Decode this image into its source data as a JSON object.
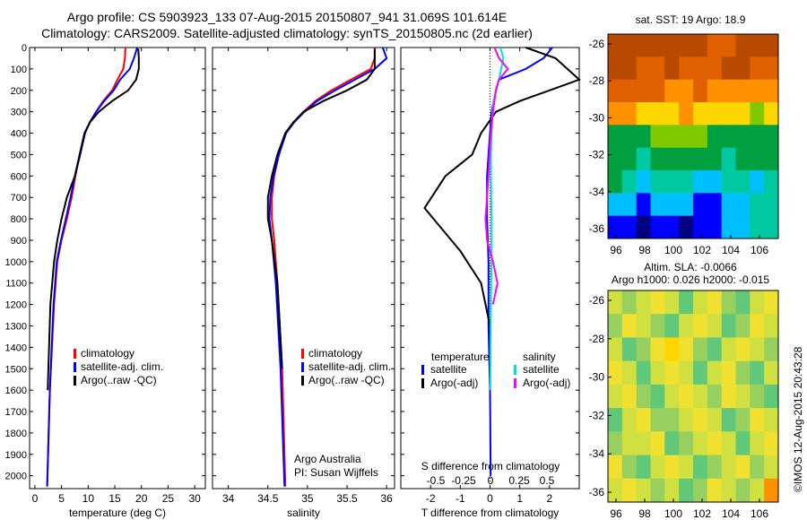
{
  "titles": {
    "line1": "Argo profile: CS 5903923_133 07-Aug-2015 20150807_941 31.069S 101.614E",
    "line2": "Climatology: CARS2009. Satellite-adjusted climatology: synTS_20150805.nc (2d earlier)"
  },
  "depth_axis": {
    "ticks": [
      0,
      100,
      200,
      300,
      400,
      500,
      600,
      700,
      800,
      900,
      1000,
      1100,
      1200,
      1300,
      1400,
      1500,
      1600,
      1700,
      1800,
      1900,
      2000
    ],
    "range": [
      0,
      2060
    ]
  },
  "chart_data": [
    {
      "type": "line",
      "panel": "temperature",
      "xlabel": "temperature (deg C)",
      "xlim": [
        -1,
        32
      ],
      "xticks": [
        0,
        5,
        10,
        15,
        20,
        25,
        30
      ],
      "legend": [
        "climatology",
        "satellite-adj. clim.",
        "Argo(..raw -QC)"
      ],
      "series": [
        {
          "name": "climatology",
          "color": "#ff0000",
          "x": [
            17.0,
            16.9,
            16.6,
            15.5,
            14.5,
            12.8,
            11.5,
            10.3,
            9.3,
            8.4,
            7.6,
            6.9,
            6.0,
            5.0,
            4.2,
            3.6,
            2.8,
            2.3
          ],
          "y": [
            0,
            50,
            100,
            150,
            200,
            250,
            300,
            350,
            400,
            500,
            600,
            700,
            800,
            900,
            1000,
            1200,
            1600,
            2050
          ]
        },
        {
          "name": "satellite-adj. clim.",
          "color": "#0000ff",
          "x": [
            19.2,
            18.6,
            17.8,
            16.0,
            14.8,
            13.0,
            11.5,
            10.3,
            9.3,
            8.4,
            7.5,
            6.7,
            5.8,
            4.9,
            4.1,
            3.5,
            2.8,
            2.3
          ],
          "y": [
            0,
            50,
            100,
            150,
            200,
            250,
            300,
            350,
            400,
            500,
            600,
            700,
            800,
            900,
            1000,
            1200,
            1600,
            2050
          ]
        },
        {
          "name": "Argo(..raw -QC)",
          "color": "#000000",
          "x": [
            19.4,
            19.5,
            19.5,
            19.0,
            17.5,
            14.5,
            12.0,
            10.3,
            9.4,
            8.5,
            7.5,
            6.0,
            5.0,
            4.2,
            3.6,
            2.9,
            2.4
          ],
          "y": [
            5,
            50,
            100,
            150,
            200,
            250,
            300,
            350,
            400,
            500,
            600,
            700,
            800,
            900,
            1000,
            1200,
            1600
          ]
        }
      ]
    },
    {
      "type": "line",
      "panel": "salinity",
      "xlabel": "salinity",
      "xlim": [
        33.8,
        36.1
      ],
      "xticks": [
        34,
        34.5,
        35,
        35.5,
        36
      ],
      "legend": [
        "climatology",
        "satellite-adj. clim.",
        "Argo(..raw -QC)"
      ],
      "annotations": [
        "Argo Australia",
        "PI: Susan Wijffels"
      ],
      "series": [
        {
          "name": "climatology",
          "color": "#ff0000",
          "x": [
            35.85,
            35.85,
            35.8,
            35.55,
            35.3,
            35.1,
            34.95,
            34.82,
            34.72,
            34.64,
            34.58,
            34.55,
            34.55,
            34.58,
            34.62,
            34.68,
            34.72
          ],
          "y": [
            0,
            50,
            100,
            150,
            200,
            250,
            300,
            350,
            400,
            500,
            600,
            700,
            800,
            900,
            1100,
            1500,
            2050
          ]
        },
        {
          "name": "satellite-adj. clim.",
          "color": "#0000ff",
          "x": [
            35.95,
            36.0,
            35.85,
            35.6,
            35.35,
            35.12,
            34.96,
            34.83,
            34.73,
            34.64,
            34.57,
            34.53,
            34.52,
            34.55,
            34.6,
            34.66,
            34.71
          ],
          "y": [
            0,
            50,
            100,
            150,
            200,
            250,
            300,
            350,
            400,
            500,
            600,
            700,
            800,
            900,
            1100,
            1500,
            2050
          ]
        },
        {
          "name": "Argo(..raw -QC)",
          "color": "#000000",
          "x": [
            35.85,
            35.85,
            35.85,
            35.75,
            35.5,
            35.2,
            34.95,
            34.82,
            34.72,
            34.62,
            34.55,
            34.5,
            34.5,
            34.55,
            34.62,
            34.68
          ],
          "y": [
            5,
            50,
            100,
            150,
            200,
            250,
            300,
            350,
            400,
            500,
            600,
            700,
            800,
            900,
            1100,
            1500
          ]
        }
      ]
    },
    {
      "type": "line",
      "panel": "difference",
      "xlabel": "T difference from climatology",
      "xlim": [
        -3.0,
        3.0
      ],
      "xticks": [
        -2,
        -1,
        0,
        1,
        2
      ],
      "secondary_xlabel": "S difference from climatology",
      "secondary_xticks": [
        "-0.5",
        "-0.25",
        "0",
        "0.25",
        "0.5"
      ],
      "legend_titles": [
        "temperature",
        "salinity"
      ],
      "legend": [
        "satellite",
        "Argo(-adj)",
        "satellite",
        "Argo(-adj)"
      ],
      "series": [
        {
          "name": "T satellite",
          "color": "#0000ff",
          "x": [
            2.1,
            1.8,
            1.2,
            0.3,
            0.2,
            0.05,
            0.0,
            -0.05,
            -0.1,
            -0.1,
            -0.05,
            -0.05,
            0.0,
            0.02
          ],
          "y": [
            0,
            50,
            100,
            150,
            200,
            300,
            400,
            500,
            600,
            800,
            1000,
            1300,
            1600,
            2000
          ]
        },
        {
          "name": "T Argo(-adj)",
          "color": "#000000",
          "x": [
            1.2,
            2.2,
            3.0,
            2.0,
            1.0,
            0.2,
            -0.3,
            -0.6,
            -1.5,
            -2.2,
            -1.0,
            -0.3,
            0.0,
            0.0
          ],
          "y": [
            0,
            50,
            150,
            200,
            250,
            300,
            400,
            500,
            600,
            750,
            950,
            1100,
            1300,
            1500
          ]
        },
        {
          "name": "S satellite",
          "color": "#00e0e0",
          "x": [
            0.35,
            0.45,
            0.3,
            0.12,
            0.08,
            0.05,
            0.03,
            0.03,
            0.05,
            0.05,
            0.04,
            0.02,
            0.01
          ],
          "y": [
            0,
            50,
            150,
            250,
            300,
            400,
            500,
            600,
            800,
            1000,
            1100,
            1300,
            1600
          ]
        },
        {
          "name": "S Argo(-adj)",
          "color": "#ff00ff",
          "x": [
            0.15,
            0.3,
            0.6,
            0.3,
            0.2,
            0.1,
            0.0,
            -0.05,
            -0.15,
            -0.1,
            0.0,
            0.1,
            0.25,
            0.1
          ],
          "y": [
            0,
            50,
            100,
            150,
            200,
            300,
            450,
            600,
            800,
            900,
            950,
            1000,
            1100,
            1200
          ]
        }
      ]
    },
    {
      "type": "heatmap",
      "panel": "sst",
      "title": "sat. SST: 19 Argo: 18.9",
      "xticks": [
        "96",
        "98",
        "100",
        "102",
        "104",
        "106"
      ],
      "yticks": [
        "-26",
        "-28",
        "-30",
        "-32",
        "-34",
        "-36"
      ],
      "colors": [
        "#000080",
        "#0000ff",
        "#00bfff",
        "#00c8a0",
        "#00a040",
        "#80c800",
        "#ffd700",
        "#ff9000",
        "#e06000",
        "#b84a00"
      ],
      "grid": [
        [
          9,
          9,
          9,
          9,
          9,
          9,
          9,
          8,
          8,
          9,
          9,
          9
        ],
        [
          9,
          9,
          8,
          8,
          9,
          8,
          8,
          8,
          9,
          9,
          8,
          8
        ],
        [
          8,
          8,
          8,
          8,
          7,
          7,
          8,
          7,
          7,
          7,
          7,
          7
        ],
        [
          7,
          7,
          6,
          6,
          6,
          7,
          6,
          6,
          6,
          6,
          5,
          6
        ],
        [
          4,
          4,
          4,
          5,
          5,
          5,
          5,
          4,
          4,
          4,
          4,
          4
        ],
        [
          4,
          4,
          3,
          4,
          4,
          4,
          4,
          4,
          3,
          4,
          4,
          4
        ],
        [
          4,
          3,
          2,
          3,
          3,
          3,
          2,
          2,
          3,
          3,
          2,
          3
        ],
        [
          2,
          2,
          1,
          2,
          2,
          2,
          1,
          1,
          2,
          2,
          3,
          3
        ],
        [
          1,
          1,
          0,
          1,
          1,
          0,
          1,
          1,
          2,
          2,
          3,
          3
        ]
      ]
    },
    {
      "type": "heatmap",
      "panel": "sla",
      "title": "Altim. SLA: -0.0066",
      "subtitle": "Argo h1000: 0.026 h2000: -0.015",
      "xticks": [
        "96",
        "98",
        "100",
        "102",
        "104",
        "106"
      ],
      "yticks": [
        "-26",
        "-28",
        "-30",
        "-32",
        "-34",
        "-36"
      ],
      "colors": [
        "#60c878",
        "#98d060",
        "#d0e040",
        "#f0e030",
        "#ffd700",
        "#ff9000"
      ],
      "grid": [
        [
          2,
          1,
          2,
          3,
          2,
          0,
          2,
          3,
          1,
          0,
          2,
          3
        ],
        [
          1,
          3,
          2,
          1,
          0,
          2,
          3,
          2,
          0,
          1,
          3,
          2
        ],
        [
          2,
          0,
          1,
          3,
          4,
          3,
          1,
          0,
          2,
          3,
          2,
          1
        ],
        [
          3,
          2,
          0,
          2,
          3,
          2,
          0,
          2,
          3,
          1,
          0,
          2
        ],
        [
          2,
          3,
          1,
          0,
          2,
          3,
          2,
          1,
          3,
          2,
          1,
          0
        ],
        [
          0,
          2,
          3,
          1,
          1,
          2,
          3,
          2,
          0,
          1,
          3,
          2
        ],
        [
          1,
          2,
          2,
          3,
          0,
          1,
          2,
          3,
          2,
          0,
          2,
          3
        ],
        [
          3,
          1,
          0,
          2,
          3,
          2,
          0,
          1,
          2,
          3,
          1,
          2
        ],
        [
          2,
          3,
          2,
          1,
          2,
          0,
          1,
          3,
          2,
          1,
          2,
          5
        ]
      ]
    }
  ],
  "stamp": "©IMOS 12-Aug-2015 20:43:28"
}
